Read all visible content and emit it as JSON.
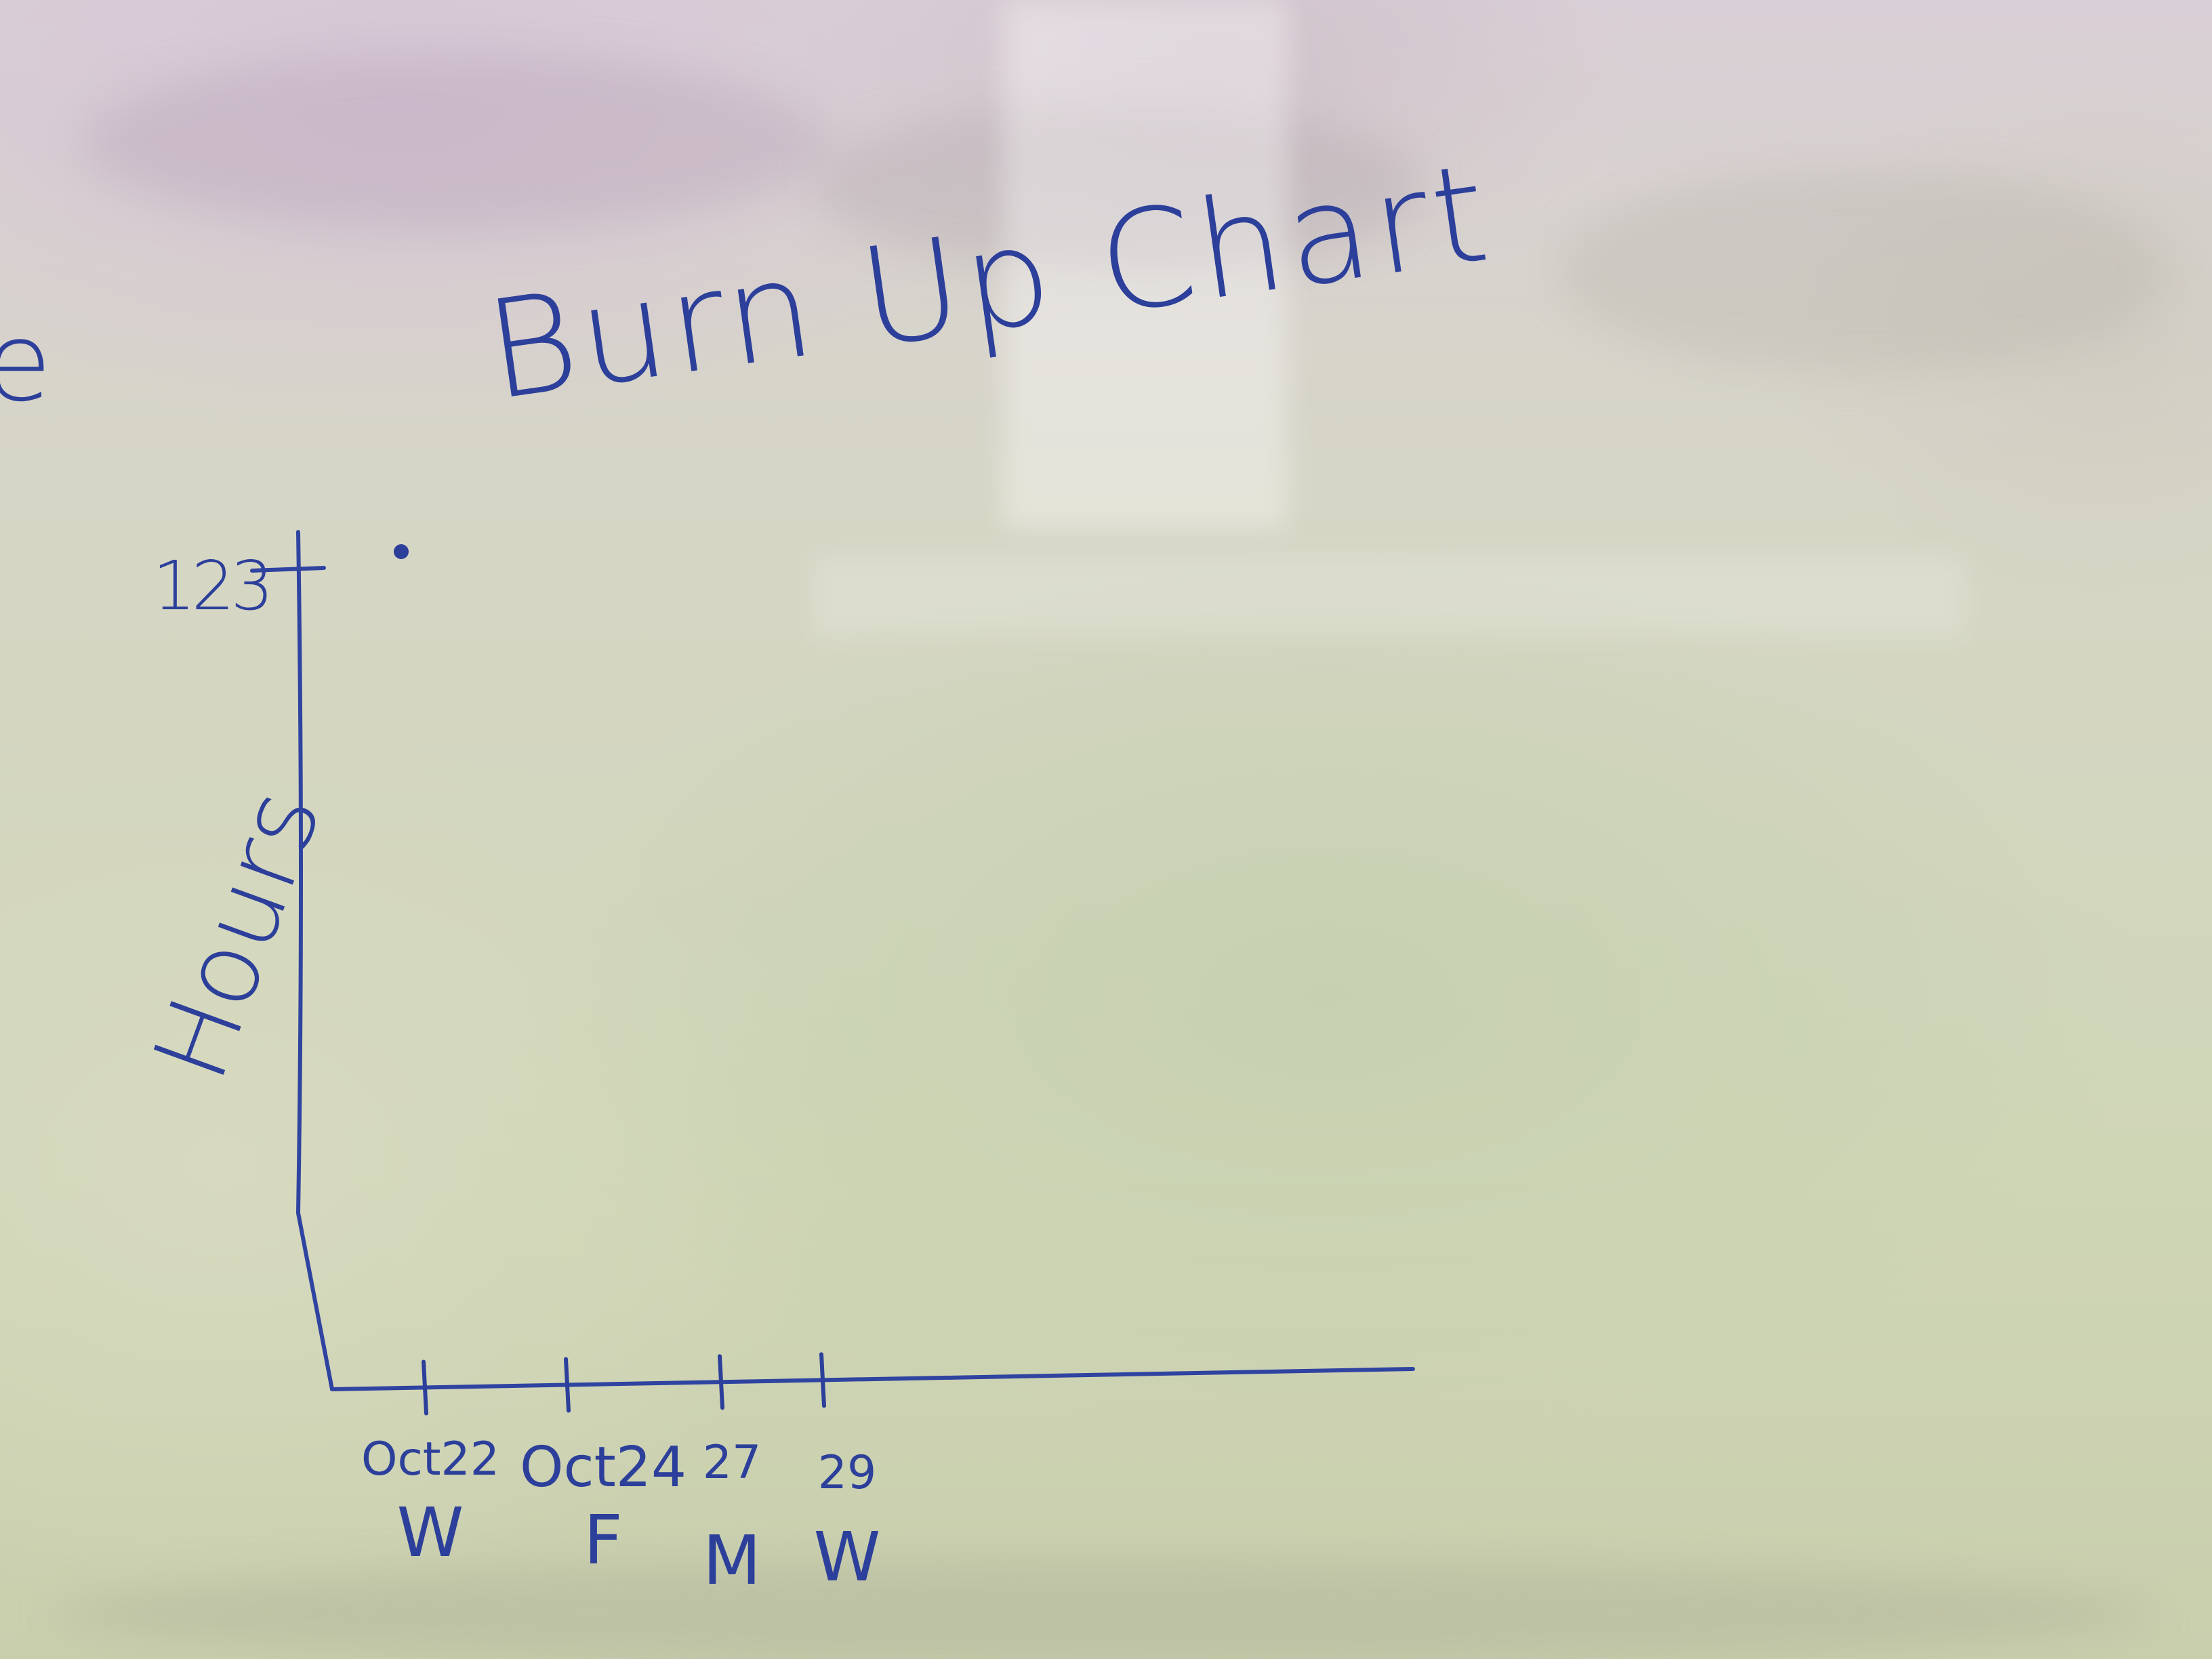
{
  "board": {
    "title": "Burn Up Chart",
    "edge_letter": "e"
  },
  "chart_data": {
    "type": "scatter",
    "title": "Burn Up Chart",
    "ylabel": "Hours",
    "xlabel": "",
    "y_ticks": [
      "123"
    ],
    "x_ticks": [
      {
        "date": "Oct22",
        "day": "W"
      },
      {
        "date": "Oct24",
        "day": "F"
      },
      {
        "date": "27",
        "day": "M"
      },
      {
        "date": "29",
        "day": "W"
      }
    ],
    "series": [
      {
        "points": [
          {
            "x": "Oct 21",
            "y": 123
          }
        ]
      }
    ],
    "ink_color": "#2c3f9a"
  }
}
